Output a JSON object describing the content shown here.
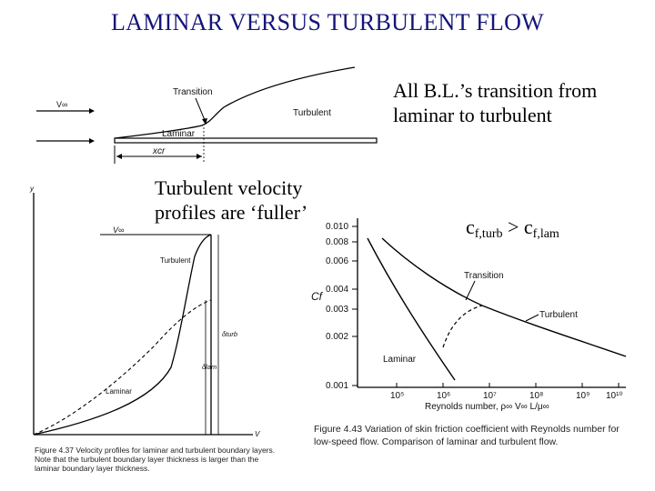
{
  "title": "LAMINAR VERSUS TURBULENT FLOW",
  "bullets": {
    "transition": "All B.L.’s transition from laminar to turbulent",
    "fuller": "Turbulent velocity profiles are ‘fuller’",
    "cf_base": "c",
    "cf_turb_sub": "f,turb",
    "cf_gt": " > c",
    "cf_lam_sub": "f,lam"
  },
  "plate_figure": {
    "v_inf": "V∞",
    "transition": "Transition",
    "turbulent": "Turbulent",
    "laminar": "Laminar",
    "x_cr": "xcr"
  },
  "profile_figure": {
    "y_axis": "y",
    "x_axis": "V",
    "v_inf": "V∞",
    "turbulent": "Turbulent",
    "laminar": "Laminar",
    "delta_turb": "δturb",
    "delta_lam": "δlam",
    "caption": "Figure 4.37  Velocity profiles for laminar and turbulent boundary layers. Note that the turbulent boundary layer thickness is larger than the laminar boundary layer thickness."
  },
  "friction_figure": {
    "y_label": "Cf",
    "y_ticks": [
      "0.010",
      "0.008",
      "0.006",
      "0.004",
      "0.003",
      "0.002",
      "0.001"
    ],
    "x_ticks": [
      "10⁵",
      "10⁶",
      "10⁷",
      "10⁸",
      "10⁹",
      "10¹⁰"
    ],
    "x_label": "Reynolds number, ρ∞ V∞ L/μ∞",
    "transition": "Transition",
    "turbulent": "Turbulent",
    "laminar": "Laminar",
    "caption": "Figure 4.43  Variation of skin friction coefficient with Reynolds number for low-speed flow. Comparison of laminar and turbulent flow."
  }
}
